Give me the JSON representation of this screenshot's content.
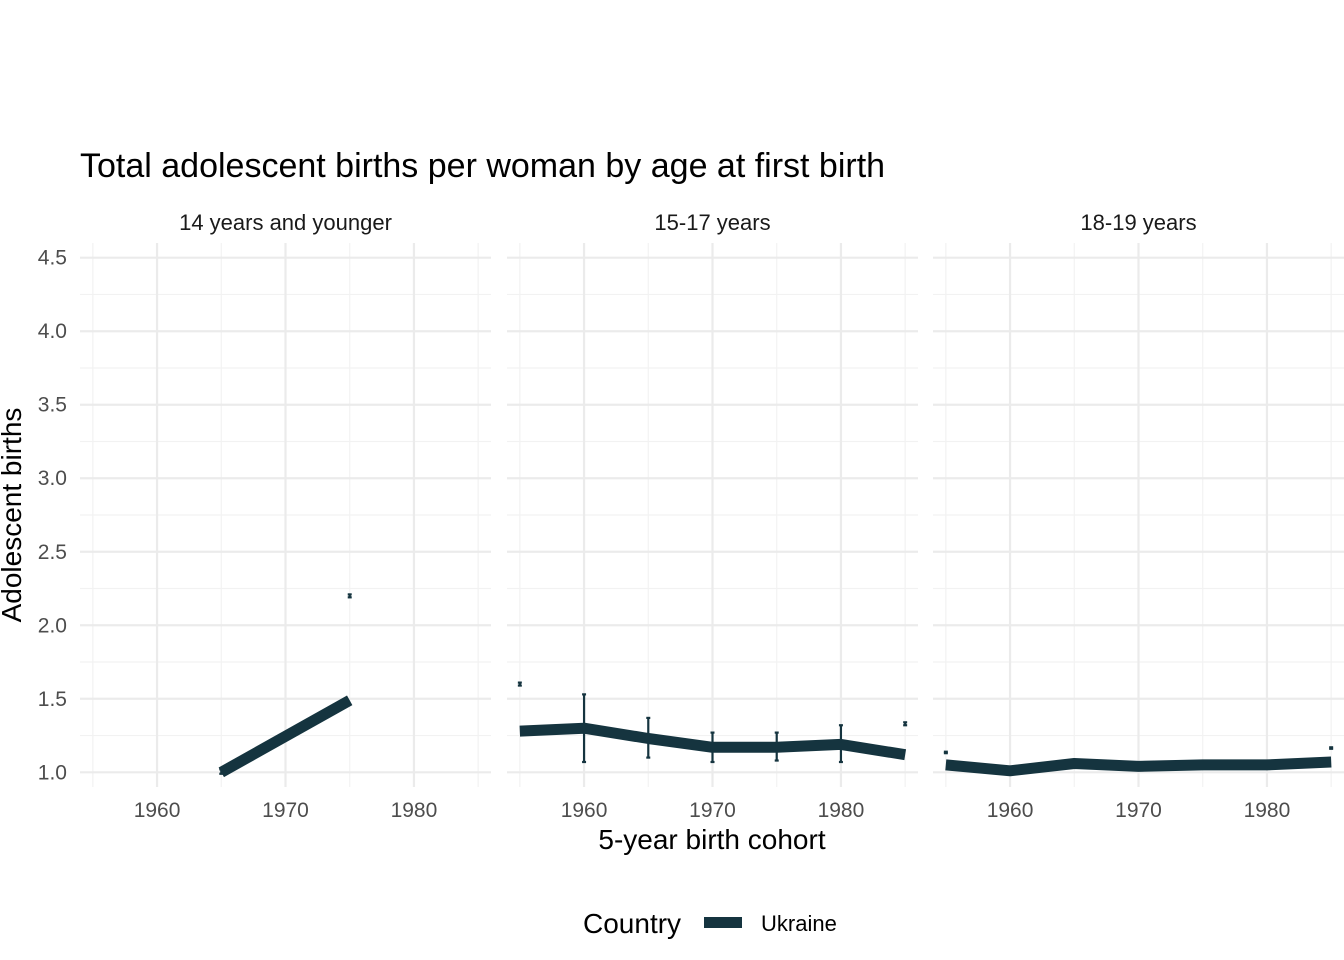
{
  "chart_data": {
    "type": "line",
    "title": "Total adolescent births per woman by age at first birth",
    "xlabel": "5-year birth cohort",
    "ylabel": "Adolescent births",
    "xlim": [
      1954,
      1986
    ],
    "ylim": [
      0.9,
      4.6
    ],
    "x_ticks": [
      1960,
      1970,
      1980
    ],
    "x_tick_labels": [
      "1960",
      "1970",
      "1980"
    ],
    "y_ticks": [
      1.0,
      1.5,
      2.0,
      2.5,
      3.0,
      3.5,
      4.0,
      4.5
    ],
    "y_tick_labels": [
      "1.0",
      "1.5",
      "2.0",
      "2.5",
      "3.0",
      "3.5",
      "4.0",
      "4.5"
    ],
    "grid": true,
    "legend": {
      "title": "Country",
      "placement": "bottom",
      "entries": [
        {
          "label": "Ukraine",
          "color": "#15343f"
        }
      ]
    },
    "line_color": "#15343f",
    "panels": [
      {
        "label": "14 years and younger",
        "series": [
          {
            "name": "Ukraine",
            "x": [
              1965,
              1975
            ],
            "y": [
              1.0,
              1.49
            ]
          }
        ],
        "error_bars": [
          {
            "x": 1965,
            "low": 0.99,
            "high": 1.02
          },
          {
            "x": 1975,
            "low": 2.19,
            "high": 2.21
          }
        ]
      },
      {
        "label": "15-17 years",
        "series": [
          {
            "name": "Ukraine",
            "x": [
              1955,
              1960,
              1965,
              1970,
              1975,
              1980,
              1985
            ],
            "y": [
              1.28,
              1.3,
              1.23,
              1.17,
              1.17,
              1.19,
              1.12
            ]
          }
        ],
        "error_bars": [
          {
            "x": 1955,
            "low": 1.59,
            "high": 1.61
          },
          {
            "x": 1960,
            "low": 1.07,
            "high": 1.53
          },
          {
            "x": 1965,
            "low": 1.1,
            "high": 1.37
          },
          {
            "x": 1970,
            "low": 1.07,
            "high": 1.27
          },
          {
            "x": 1975,
            "low": 1.08,
            "high": 1.27
          },
          {
            "x": 1980,
            "low": 1.07,
            "high": 1.32
          },
          {
            "x": 1985,
            "low": 1.32,
            "high": 1.34
          }
        ]
      },
      {
        "label": "18-19 years",
        "series": [
          {
            "name": "Ukraine",
            "x": [
              1955,
              1960,
              1965,
              1970,
              1975,
              1980,
              1985
            ],
            "y": [
              1.05,
              1.01,
              1.06,
              1.04,
              1.05,
              1.05,
              1.07
            ]
          }
        ],
        "error_bars": [
          {
            "x": 1955,
            "low": 1.13,
            "high": 1.14
          },
          {
            "x": 1960,
            "low": 1.0,
            "high": 1.01
          },
          {
            "x": 1965,
            "low": 1.05,
            "high": 1.08
          },
          {
            "x": 1970,
            "low": 1.03,
            "high": 1.05
          },
          {
            "x": 1975,
            "low": 1.04,
            "high": 1.07
          },
          {
            "x": 1980,
            "low": 1.03,
            "high": 1.07
          },
          {
            "x": 1985,
            "low": 1.16,
            "high": 1.17
          }
        ]
      }
    ]
  }
}
